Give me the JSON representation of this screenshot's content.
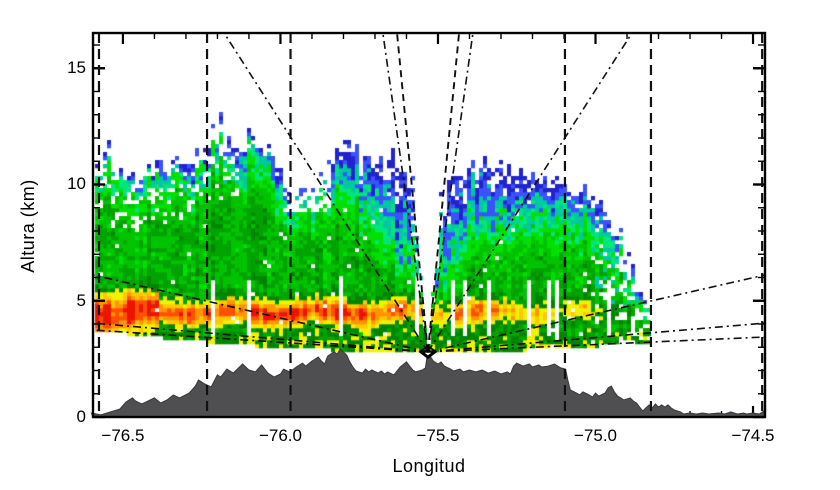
{
  "chart_data": {
    "type": "heatmap",
    "subtype": "radar-rhi-cross-section",
    "title": "",
    "xlabel": "Longitud",
    "ylabel": "Altura (km)",
    "x_range": [
      -76.595,
      -74.462
    ],
    "y_range": [
      0,
      16.516
    ],
    "x_ticks": {
      "values": [
        -76.5,
        -76.0,
        -75.5,
        -75.0,
        -74.5
      ],
      "labels": [
        "−76.5",
        "−76.0",
        "−75.5",
        "−75.0",
        "−74.5"
      ]
    },
    "x_minor_step": 0.1,
    "y_ticks": {
      "values": [
        0,
        5,
        10,
        15
      ],
      "labels": [
        "0",
        "5",
        "10",
        "15"
      ]
    },
    "y_minor_step": 1,
    "grid": false,
    "legend": "none",
    "radar_site": {
      "lon": -75.532,
      "alt_km": 2.8
    },
    "beam_bottom_curve": {
      "vertex_lon": -75.532,
      "vertex_km": 2.8,
      "c_km_per_deg2": 0.855
    },
    "cone_of_silence_halfwidth_deg_per_km": 0.00738,
    "dashed_vertical_lons": [
      -76.576,
      -76.233,
      -75.968,
      -75.097,
      -74.824,
      -74.471
    ],
    "rays": [
      {
        "style": "dashdot",
        "to": [
          -75.675,
          16.52
        ]
      },
      {
        "style": "dashdot",
        "to": [
          -75.389,
          16.52
        ]
      },
      {
        "style": "longdash",
        "to": [
          -75.63,
          16.52
        ]
      },
      {
        "style": "longdash",
        "to": [
          -75.433,
          16.52
        ]
      },
      {
        "style": "dashdot",
        "to": [
          -76.179,
          16.52
        ]
      },
      {
        "style": "dashdot",
        "to": [
          -74.884,
          16.52
        ]
      },
      {
        "style": "dashdot",
        "to": [
          -76.595,
          6.11
        ]
      },
      {
        "style": "dashdot",
        "to": [
          -74.462,
          6.11
        ]
      },
      {
        "style": "dashdot",
        "to": [
          -76.595,
          4.04
        ]
      },
      {
        "style": "dashdot",
        "to": [
          -74.462,
          4.04
        ]
      },
      {
        "style": "dashdot",
        "to": [
          -76.595,
          3.74
        ]
      },
      {
        "style": "dashdot",
        "to": [
          -74.462,
          3.44
        ]
      }
    ],
    "echo": {
      "extent_lon": [
        -76.595,
        -74.82
      ],
      "top_profile": [
        [
          -76.6,
          10.6
        ],
        [
          -76.55,
          11.2
        ],
        [
          -76.5,
          10.8
        ],
        [
          -76.45,
          10.3
        ],
        [
          -76.4,
          10.9
        ],
        [
          -76.35,
          11.0
        ],
        [
          -76.3,
          10.6
        ],
        [
          -76.25,
          11.5
        ],
        [
          -76.2,
          12.0
        ],
        [
          -76.15,
          11.7
        ],
        [
          -76.1,
          12.1
        ],
        [
          -76.05,
          11.5
        ],
        [
          -76.0,
          10.4
        ],
        [
          -75.95,
          9.7
        ],
        [
          -75.9,
          9.9
        ],
        [
          -75.85,
          10.9
        ],
        [
          -75.8,
          11.7
        ],
        [
          -75.75,
          11.6
        ],
        [
          -75.7,
          11.3
        ],
        [
          -75.65,
          11.0
        ],
        [
          -75.6,
          10.6
        ],
        [
          -75.55,
          10.2
        ],
        [
          -75.5,
          10.2
        ],
        [
          -75.45,
          10.4
        ],
        [
          -75.4,
          10.7
        ],
        [
          -75.35,
          10.9
        ],
        [
          -75.3,
          10.7
        ],
        [
          -75.25,
          10.4
        ],
        [
          -75.2,
          10.5
        ],
        [
          -75.15,
          10.2
        ],
        [
          -75.1,
          10.0
        ],
        [
          -75.05,
          9.8
        ],
        [
          -75.0,
          9.4
        ],
        [
          -74.95,
          8.6
        ],
        [
          -74.9,
          7.2
        ],
        [
          -74.87,
          6.2
        ],
        [
          -74.84,
          5.2
        ]
      ],
      "bright_band": {
        "center_km": 4.5,
        "amp_zones": [
          [
            -76.6,
            -76.42,
            38
          ],
          [
            -76.42,
            -76.28,
            30
          ],
          [
            -76.28,
            -76.15,
            26
          ],
          [
            -76.15,
            -76.02,
            28
          ],
          [
            -76.02,
            -75.88,
            26
          ],
          [
            -75.88,
            -75.72,
            30
          ],
          [
            -75.72,
            -75.6,
            24
          ],
          [
            -75.6,
            -75.46,
            16
          ],
          [
            -75.46,
            -75.3,
            20
          ],
          [
            -75.3,
            -75.16,
            16
          ],
          [
            -75.16,
            -75.02,
            13
          ],
          [
            -75.02,
            -74.94,
            8
          ],
          [
            -74.94,
            -74.82,
            4
          ]
        ],
        "red_spot_lon": -75.375
      }
    },
    "terrain_profile": [
      [
        -76.6,
        0.17
      ],
      [
        -76.57,
        0.09
      ],
      [
        -76.53,
        0.26
      ],
      [
        -76.51,
        0.34
      ],
      [
        -76.49,
        0.65
      ],
      [
        -76.47,
        0.82
      ],
      [
        -76.46,
        0.69
      ],
      [
        -76.44,
        0.56
      ],
      [
        -76.42,
        0.69
      ],
      [
        -76.4,
        0.82
      ],
      [
        -76.38,
        0.6
      ],
      [
        -76.36,
        0.73
      ],
      [
        -76.34,
        0.95
      ],
      [
        -76.32,
        0.82
      ],
      [
        -76.29,
        1.03
      ],
      [
        -76.27,
        1.33
      ],
      [
        -76.26,
        1.59
      ],
      [
        -76.24,
        1.42
      ],
      [
        -76.22,
        1.29
      ],
      [
        -76.2,
        1.81
      ],
      [
        -76.19,
        1.72
      ],
      [
        -76.17,
        2.06
      ],
      [
        -76.15,
        1.89
      ],
      [
        -76.13,
        2.15
      ],
      [
        -76.12,
        2.28
      ],
      [
        -76.1,
        2.02
      ],
      [
        -76.08,
        1.94
      ],
      [
        -76.06,
        2.24
      ],
      [
        -76.04,
        1.89
      ],
      [
        -76.02,
        1.72
      ],
      [
        -76.0,
        1.85
      ],
      [
        -75.99,
        2.06
      ],
      [
        -75.97,
        1.94
      ],
      [
        -75.95,
        2.15
      ],
      [
        -75.93,
        2.32
      ],
      [
        -75.92,
        2.19
      ],
      [
        -75.9,
        2.41
      ],
      [
        -75.88,
        2.58
      ],
      [
        -75.87,
        2.41
      ],
      [
        -75.86,
        2.28
      ],
      [
        -75.85,
        2.62
      ],
      [
        -75.83,
        2.8
      ],
      [
        -75.82,
        2.71
      ],
      [
        -75.81,
        2.92
      ],
      [
        -75.79,
        2.67
      ],
      [
        -75.78,
        2.37
      ],
      [
        -75.77,
        2.15
      ],
      [
        -75.76,
        1.98
      ],
      [
        -75.74,
        1.89
      ],
      [
        -75.73,
        2.06
      ],
      [
        -75.72,
        1.94
      ],
      [
        -75.71,
        2.02
      ],
      [
        -75.69,
        1.89
      ],
      [
        -75.68,
        1.98
      ],
      [
        -75.67,
        1.85
      ],
      [
        -75.66,
        1.94
      ],
      [
        -75.64,
        1.81
      ],
      [
        -75.63,
        1.98
      ],
      [
        -75.62,
        2.15
      ],
      [
        -75.6,
        2.37
      ],
      [
        -75.59,
        2.19
      ],
      [
        -75.58,
        2.02
      ],
      [
        -75.57,
        1.94
      ],
      [
        -75.55,
        2.02
      ],
      [
        -75.54,
        2.11
      ],
      [
        -75.535,
        2.58
      ],
      [
        -75.525,
        2.62
      ],
      [
        -75.515,
        2.41
      ],
      [
        -75.5,
        2.28
      ],
      [
        -75.49,
        2.37
      ],
      [
        -75.48,
        2.19
      ],
      [
        -75.46,
        2.06
      ],
      [
        -75.45,
        1.98
      ],
      [
        -75.43,
        2.06
      ],
      [
        -75.42,
        1.94
      ],
      [
        -75.4,
        2.02
      ],
      [
        -75.38,
        1.94
      ],
      [
        -75.36,
        2.02
      ],
      [
        -75.34,
        1.89
      ],
      [
        -75.32,
        1.98
      ],
      [
        -75.3,
        1.85
      ],
      [
        -75.28,
        1.94
      ],
      [
        -75.27,
        1.85
      ],
      [
        -75.26,
        2.19
      ],
      [
        -75.25,
        2.32
      ],
      [
        -75.23,
        2.19
      ],
      [
        -75.21,
        2.28
      ],
      [
        -75.2,
        2.15
      ],
      [
        -75.18,
        2.24
      ],
      [
        -75.17,
        2.15
      ],
      [
        -75.15,
        2.19
      ],
      [
        -75.13,
        2.28
      ],
      [
        -75.12,
        2.19
      ],
      [
        -75.11,
        2.11
      ],
      [
        -75.095,
        2.06
      ],
      [
        -75.088,
        1.59
      ],
      [
        -75.08,
        1.16
      ],
      [
        -75.06,
        1.03
      ],
      [
        -75.05,
        0.95
      ],
      [
        -75.04,
        1.08
      ],
      [
        -75.02,
        0.95
      ],
      [
        -75.01,
        0.86
      ],
      [
        -75.0,
        1.03
      ],
      [
        -74.99,
        0.9
      ],
      [
        -74.97,
        1.03
      ],
      [
        -74.96,
        1.25
      ],
      [
        -74.95,
        1.33
      ],
      [
        -74.94,
        1.08
      ],
      [
        -74.93,
        0.9
      ],
      [
        -74.92,
        0.82
      ],
      [
        -74.91,
        0.73
      ],
      [
        -74.89,
        0.82
      ],
      [
        -74.88,
        0.69
      ],
      [
        -74.87,
        0.6
      ],
      [
        -74.86,
        0.43
      ],
      [
        -74.85,
        0.26
      ],
      [
        -74.84,
        0.39
      ],
      [
        -74.83,
        0.52
      ],
      [
        -74.82,
        0.39
      ],
      [
        -74.81,
        0.56
      ],
      [
        -74.8,
        0.43
      ],
      [
        -74.79,
        0.52
      ],
      [
        -74.78,
        0.43
      ],
      [
        -74.77,
        0.52
      ],
      [
        -74.76,
        0.39
      ],
      [
        -74.75,
        0.3
      ],
      [
        -74.73,
        0.22
      ],
      [
        -74.72,
        0.13
      ],
      [
        -74.7,
        0.17
      ],
      [
        -74.68,
        0.13
      ],
      [
        -74.66,
        0.17
      ],
      [
        -74.64,
        0.13
      ],
      [
        -74.61,
        0.17
      ],
      [
        -74.59,
        0.13
      ],
      [
        -74.57,
        0.22
      ],
      [
        -74.55,
        0.13
      ],
      [
        -74.53,
        0.17
      ],
      [
        -74.52,
        0.13
      ],
      [
        -74.5,
        0.17
      ],
      [
        -74.48,
        0.13
      ],
      [
        -74.46,
        0.3
      ]
    ],
    "colors": {
      "frame": "#000000",
      "terrain": "#4f4f52",
      "terrain_edge": "#3a3a3c",
      "line": "#111111",
      "palette": {
        "blue2": "#2123cd",
        "blue1": "#3a52ff",
        "teal": "#00c8a2",
        "spring": "#00e67d",
        "green1": "#00e100",
        "green2": "#00c300",
        "green3": "#00a300",
        "green4": "#008500",
        "yellow": "#f2f200",
        "gold": "#ffc800",
        "orange": "#ff9600",
        "orangered": "#ff5000",
        "red": "#eb1400"
      }
    }
  }
}
